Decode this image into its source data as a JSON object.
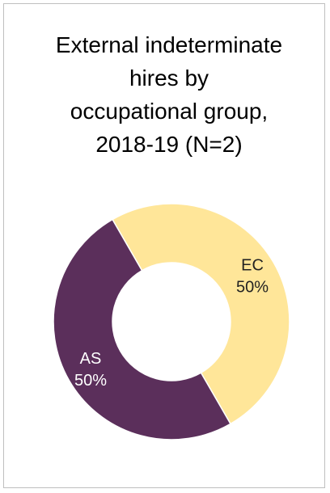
{
  "chart_data": {
    "type": "pie",
    "variant": "donut",
    "title_lines": [
      "External indeterminate",
      "hires by",
      "occupational group,",
      "2018-19 (N=2)"
    ],
    "slices": [
      {
        "label": "EC",
        "value": 50,
        "display": "50%",
        "color": "#ffe699",
        "text_color": "#222222"
      },
      {
        "label": "AS",
        "value": 50,
        "display": "50%",
        "color": "#5b2f5b",
        "text_color": "#ffffff"
      }
    ],
    "legend": "none"
  }
}
